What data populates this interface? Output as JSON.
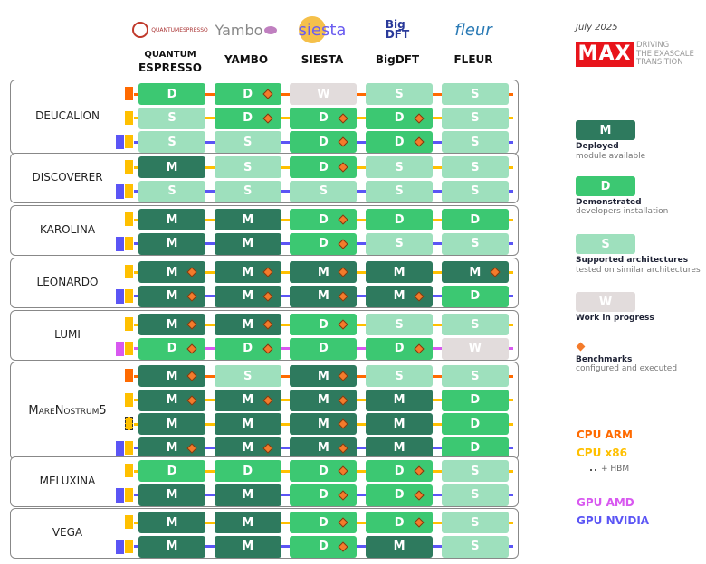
{
  "colors": {
    "M": "#2e7a5e",
    "D": "#3cc872",
    "S": "#9ee0bd",
    "W": "#e2dcdc",
    "arm": "#ff6a00",
    "x86": "#ffc000",
    "hbm": "#ffc000",
    "amd": "#d858f0",
    "nvidia": "#5b55f5",
    "benchmark": "#f47b2b"
  },
  "header": {
    "codes": [
      {
        "name": "QUANTUM",
        "name2": "ESPRESSO",
        "logo": "quantum espresso"
      },
      {
        "name": "YAMBO",
        "logo": "Yambo"
      },
      {
        "name": "SIESTA",
        "logo": "siesta"
      },
      {
        "name": "BigDFT",
        "logo": "BigDFT"
      },
      {
        "name": "FLEUR",
        "logo": "fleur"
      }
    ]
  },
  "legend": {
    "date": "July 2025",
    "brand": "MAX",
    "tagline": [
      "DRIVING",
      "THE EXASCALE",
      "TRANSITION"
    ],
    "levels": [
      {
        "code": "M",
        "title": "Deployed",
        "subtitle": "module available"
      },
      {
        "code": "D",
        "title": "Demonstrated",
        "subtitle": "developers installation"
      },
      {
        "code": "S",
        "title": "Supported architectures",
        "subtitle": "tested on similar architectures"
      },
      {
        "code": "W",
        "title": "Work in progress",
        "subtitle": ""
      }
    ],
    "benchmark": {
      "title": "Benchmarks",
      "subtitle": "configured and executed"
    },
    "archs": {
      "arm": "CPU ARM",
      "x86": "CPU x86",
      "hbm": "+ HBM",
      "amd": "GPU AMD",
      "nvidia": "GPU NVIDIA"
    }
  },
  "systems": [
    {
      "name": "DEUCALION",
      "rows": [
        {
          "arch": [
            "arm"
          ],
          "cells": [
            "D",
            "D*",
            "W",
            "S",
            "S"
          ]
        },
        {
          "arch": [
            "x86"
          ],
          "cells": [
            "S",
            "D*",
            "D*",
            "D*",
            "S"
          ]
        },
        {
          "arch": [
            "nvidia",
            "x86"
          ],
          "cells": [
            "S",
            "S",
            "D*",
            "D*",
            "S"
          ]
        }
      ]
    },
    {
      "name": "DISCOVERER",
      "rows": [
        {
          "arch": [
            "x86"
          ],
          "cells": [
            "M",
            "S",
            "D*",
            "S",
            "S"
          ]
        },
        {
          "arch": [
            "nvidia",
            "x86"
          ],
          "cells": [
            "S",
            "S",
            "S",
            "S",
            "S"
          ]
        }
      ]
    },
    {
      "name": "KAROLINA",
      "rows": [
        {
          "arch": [
            "x86"
          ],
          "cells": [
            "M",
            "M",
            "D*",
            "D",
            "D"
          ]
        },
        {
          "arch": [
            "nvidia",
            "x86"
          ],
          "cells": [
            "M",
            "M",
            "D*",
            "S",
            "S"
          ]
        }
      ]
    },
    {
      "name": "LEONARDO",
      "rows": [
        {
          "arch": [
            "x86"
          ],
          "cells": [
            "M*",
            "M*",
            "M*",
            "M",
            "M*"
          ]
        },
        {
          "arch": [
            "nvidia",
            "x86"
          ],
          "cells": [
            "M*",
            "M*",
            "M*",
            "M*",
            "D"
          ]
        }
      ]
    },
    {
      "name": "LUMI",
      "rows": [
        {
          "arch": [
            "x86"
          ],
          "cells": [
            "M*",
            "M*",
            "D*",
            "S",
            "S"
          ]
        },
        {
          "arch": [
            "amd",
            "x86"
          ],
          "cells": [
            "D*",
            "D*",
            "D",
            "D*",
            "W"
          ]
        }
      ]
    },
    {
      "name": "MareNostrum5",
      "rows": [
        {
          "arch": [
            "arm"
          ],
          "cells": [
            "M*",
            "S",
            "M*",
            "S",
            "S"
          ]
        },
        {
          "arch": [
            "x86"
          ],
          "cells": [
            "M*",
            "M*",
            "M*",
            "M",
            "D"
          ]
        },
        {
          "arch": [
            "hbm"
          ],
          "cells": [
            "M",
            "M",
            "M*",
            "M",
            "D"
          ]
        },
        {
          "arch": [
            "nvidia",
            "x86"
          ],
          "cells": [
            "M*",
            "M*",
            "M*",
            "M",
            "D"
          ]
        }
      ]
    },
    {
      "name": "MELUXINA",
      "rows": [
        {
          "arch": [
            "x86"
          ],
          "cells": [
            "D",
            "D",
            "D*",
            "D*",
            "S"
          ]
        },
        {
          "arch": [
            "nvidia",
            "x86"
          ],
          "cells": [
            "M",
            "M",
            "D*",
            "D*",
            "S"
          ]
        }
      ]
    },
    {
      "name": "VEGA",
      "rows": [
        {
          "arch": [
            "x86"
          ],
          "cells": [
            "M",
            "M",
            "D*",
            "D*",
            "S"
          ]
        },
        {
          "arch": [
            "nvidia",
            "x86"
          ],
          "cells": [
            "M",
            "M",
            "D*",
            "M",
            "S"
          ]
        }
      ]
    }
  ]
}
